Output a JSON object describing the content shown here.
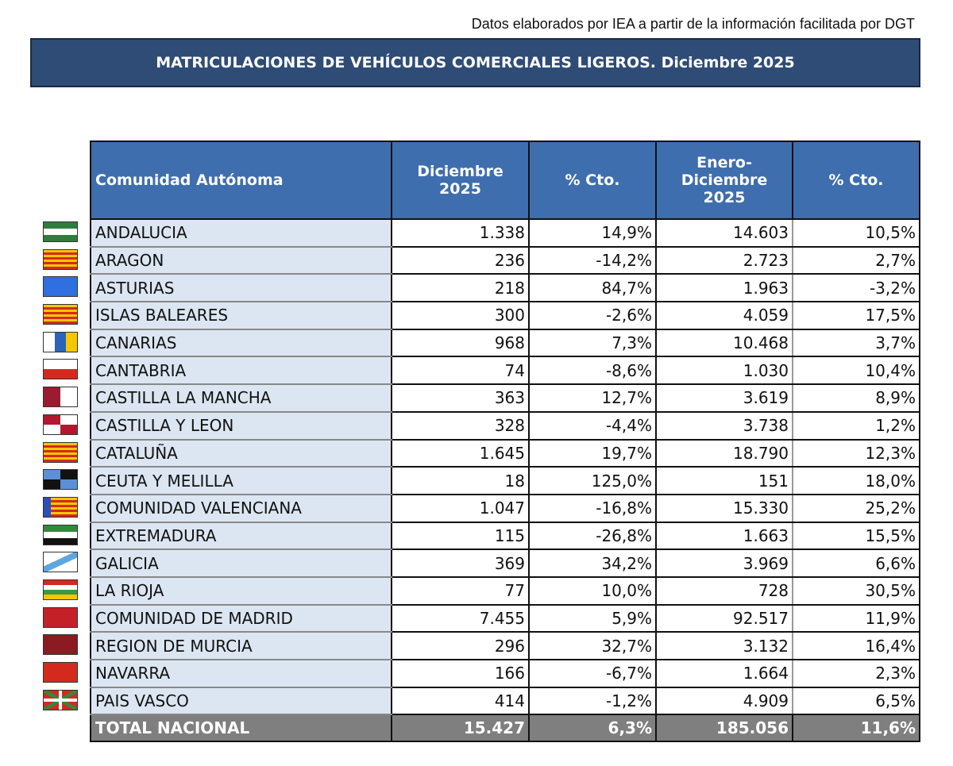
{
  "source_note": "Datos elaborados por IEA a partir de la información facilitada por DGT",
  "title": "MATRICULACIONES DE VEHÍCULOS COMERCIALES LIGEROS. Diciembre 2025",
  "colors": {
    "title_bg": "#2f4c77",
    "header_bg": "#3f6eae",
    "name_bg": "#dce6f2",
    "total_bg": "#7f7f7f"
  },
  "headers": [
    "Comunidad Autónoma",
    "Diciembre 2025",
    "% Cto.",
    "Enero-Diciembre 2025",
    "% Cto."
  ],
  "rows": [
    {
      "name": "ANDALUCIA",
      "flag": "andalucia-flag-icon",
      "dic": "1.338",
      "cto_dic": "14,9%",
      "ene_dic": "14.603",
      "cto_ene": "10,5%"
    },
    {
      "name": "ARAGON",
      "flag": "aragon-flag-icon",
      "dic": "236",
      "cto_dic": "-14,2%",
      "ene_dic": "2.723",
      "cto_ene": "2,7%"
    },
    {
      "name": "ASTURIAS",
      "flag": "asturias-flag-icon",
      "dic": "218",
      "cto_dic": "84,7%",
      "ene_dic": "1.963",
      "cto_ene": "-3,2%"
    },
    {
      "name": "ISLAS BALEARES",
      "flag": "baleares-flag-icon",
      "dic": "300",
      "cto_dic": "-2,6%",
      "ene_dic": "4.059",
      "cto_ene": "17,5%"
    },
    {
      "name": "CANARIAS",
      "flag": "canarias-flag-icon",
      "dic": "968",
      "cto_dic": "7,3%",
      "ene_dic": "10.468",
      "cto_ene": "3,7%"
    },
    {
      "name": "CANTABRIA",
      "flag": "cantabria-flag-icon",
      "dic": "74",
      "cto_dic": "-8,6%",
      "ene_dic": "1.030",
      "cto_ene": "10,4%"
    },
    {
      "name": "CASTILLA  LA MANCHA",
      "flag": "castilla-la-mancha-flag-icon",
      "dic": "363",
      "cto_dic": "12,7%",
      "ene_dic": "3.619",
      "cto_ene": "8,9%"
    },
    {
      "name": "CASTILLA Y LEON",
      "flag": "castilla-y-leon-flag-icon",
      "dic": "328",
      "cto_dic": "-4,4%",
      "ene_dic": "3.738",
      "cto_ene": "1,2%"
    },
    {
      "name": "CATALUÑA",
      "flag": "cataluna-flag-icon",
      "dic": "1.645",
      "cto_dic": "19,7%",
      "ene_dic": "18.790",
      "cto_ene": "12,3%"
    },
    {
      "name": "CEUTA Y MELILLA",
      "flag": "ceuta-melilla-flag-icon",
      "dic": "18",
      "cto_dic": "125,0%",
      "ene_dic": "151",
      "cto_ene": "18,0%"
    },
    {
      "name": "COMUNIDAD VALENCIANA",
      "flag": "valencia-flag-icon",
      "dic": "1.047",
      "cto_dic": "-16,8%",
      "ene_dic": "15.330",
      "cto_ene": "25,2%"
    },
    {
      "name": "EXTREMADURA",
      "flag": "extremadura-flag-icon",
      "dic": "115",
      "cto_dic": "-26,8%",
      "ene_dic": "1.663",
      "cto_ene": "15,5%"
    },
    {
      "name": "GALICIA",
      "flag": "galicia-flag-icon",
      "dic": "369",
      "cto_dic": "34,2%",
      "ene_dic": "3.969",
      "cto_ene": "6,6%"
    },
    {
      "name": "LA RIOJA",
      "flag": "la-rioja-flag-icon",
      "dic": "77",
      "cto_dic": "10,0%",
      "ene_dic": "728",
      "cto_ene": "30,5%"
    },
    {
      "name": "COMUNIDAD DE MADRID",
      "flag": "madrid-flag-icon",
      "dic": "7.455",
      "cto_dic": "5,9%",
      "ene_dic": "92.517",
      "cto_ene": "11,9%"
    },
    {
      "name": "REGION DE MURCIA",
      "flag": "murcia-flag-icon",
      "dic": "296",
      "cto_dic": "32,7%",
      "ene_dic": "3.132",
      "cto_ene": "16,4%"
    },
    {
      "name": "NAVARRA",
      "flag": "navarra-flag-icon",
      "dic": "166",
      "cto_dic": "-6,7%",
      "ene_dic": "1.664",
      "cto_ene": "2,3%"
    },
    {
      "name": "PAIS VASCO",
      "flag": "pais-vasco-flag-icon",
      "dic": "414",
      "cto_dic": "-1,2%",
      "ene_dic": "4.909",
      "cto_ene": "6,5%"
    }
  ],
  "total": {
    "name": "TOTAL NACIONAL",
    "dic": "15.427",
    "cto_dic": "6,3%",
    "ene_dic": "185.056",
    "cto_ene": "11,6%"
  }
}
